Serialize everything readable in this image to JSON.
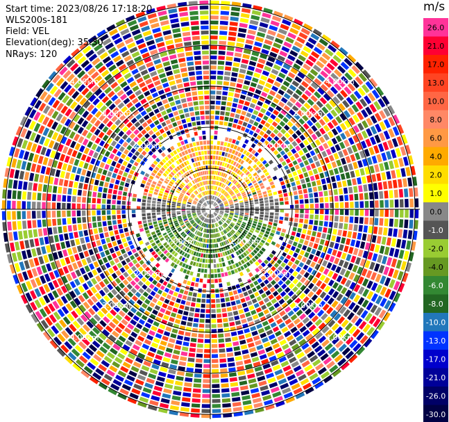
{
  "header": {
    "start_time": "Start time: 2023/08/26 17:18:20",
    "instrument": "WLS200s-181",
    "field": "Field: VEL",
    "elevation": "Elevation(deg): 35.30",
    "nrays": "NRays: 120"
  },
  "colorbar": {
    "unit": "m/s",
    "ticks": [
      "26.0",
      "21.0",
      "17.0",
      "13.0",
      "10.0",
      "8.0",
      "6.0",
      "4.0",
      "2.0",
      "1.0",
      "0.0",
      "-1.0",
      "-2.0",
      "-4.0",
      "-6.0",
      "-8.0",
      "-10.0",
      "-13.0",
      "-17.0",
      "-21.0",
      "-26.0",
      "-30.0"
    ],
    "colors": [
      "#ff3399",
      "#ff0033",
      "#ff2200",
      "#ff4422",
      "#ff6644",
      "#ff8866",
      "#ff9944",
      "#ffaa00",
      "#ffdd00",
      "#ffff00",
      "#888888",
      "#555555",
      "#99cc33",
      "#669922",
      "#338833",
      "#226622",
      "#2277bb",
      "#0033ff",
      "#0000cc",
      "#000099",
      "#000066",
      "#000044"
    ]
  },
  "chart_data": {
    "type": "heatmap",
    "title": "",
    "field": "VEL",
    "nrays": 120,
    "elevation_deg": 35.3,
    "range_ring_labels_km": [
      "1.00km",
      "2.00km",
      "3.00km",
      "4.00km",
      "5.00km"
    ],
    "range_rings_km": [
      1,
      2,
      3,
      4,
      5
    ],
    "velocity_pattern": {
      "near_north_sector": "positive 4 to 13 m/s (yellow/orange)",
      "near_south_sector": "negative -1 to -8 m/s (green)",
      "center_band": "about 0 m/s (grey)",
      "outer_ranges": "noise spanning -30 to 26 m/s"
    },
    "color_scale_range": [
      -30,
      26
    ],
    "unit": "m/s"
  }
}
